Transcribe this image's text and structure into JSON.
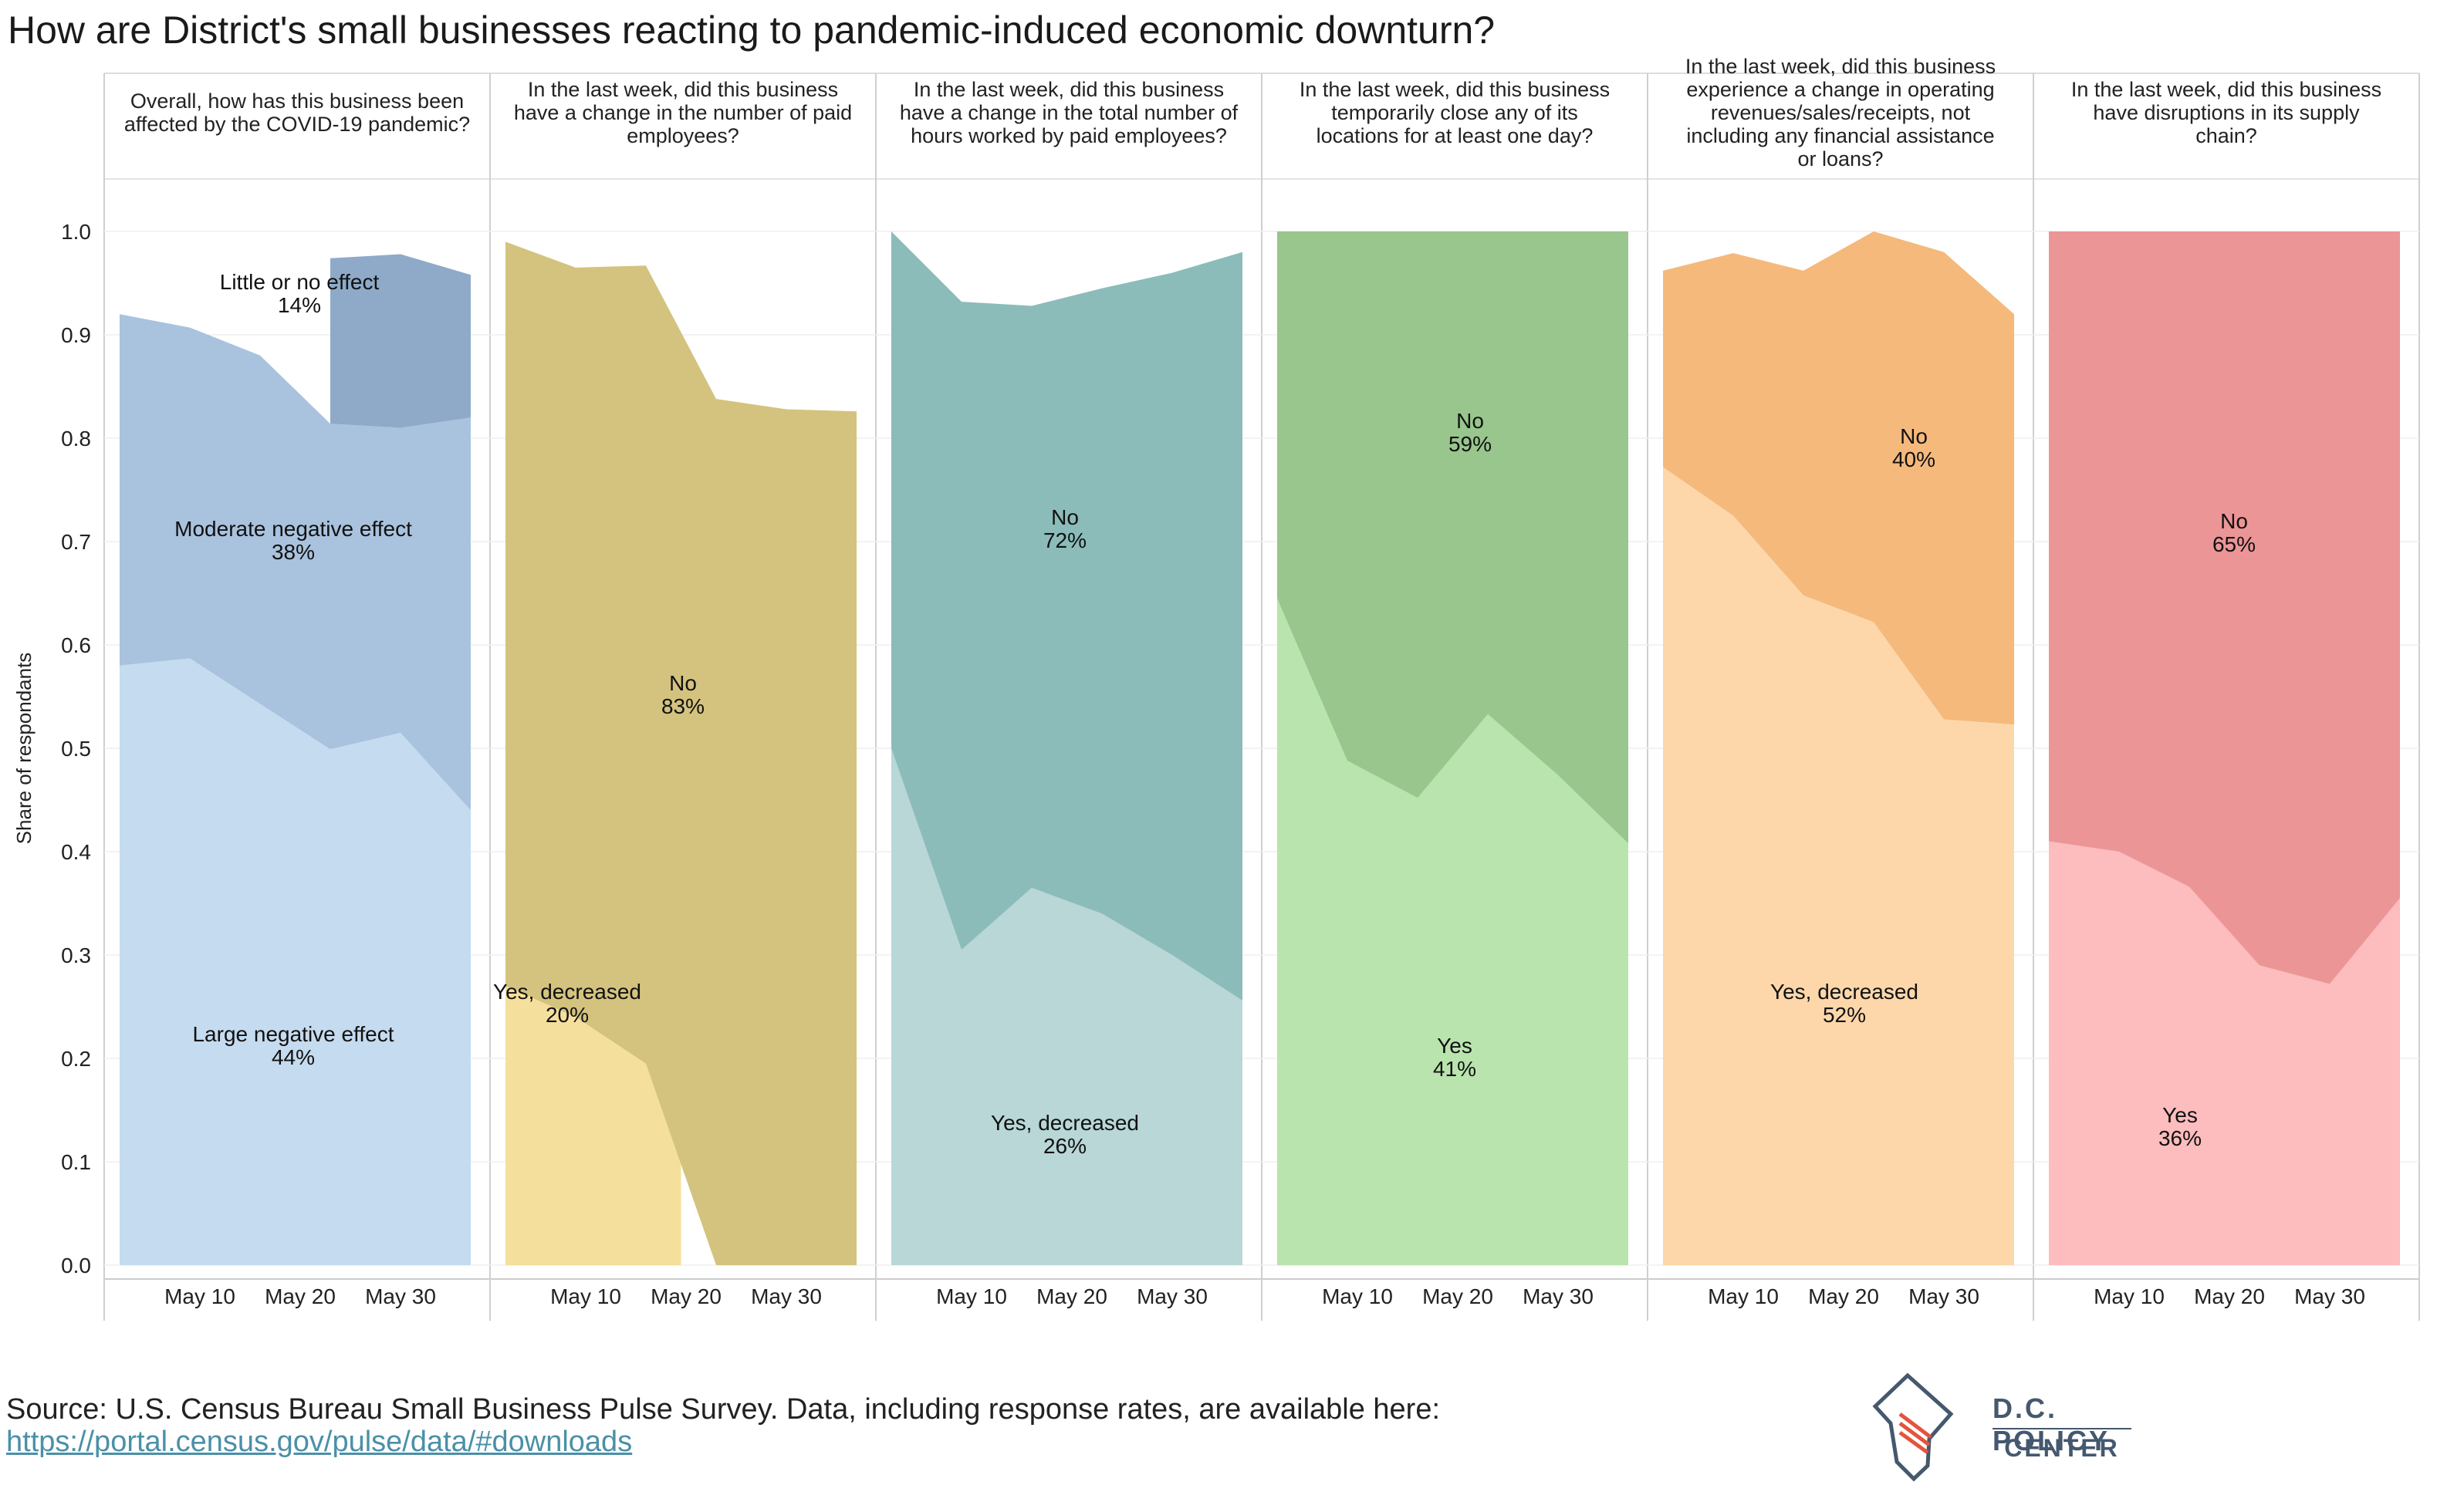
{
  "title": "How are District's small businesses reacting to pandemic-induced economic downturn?",
  "ylabel": "Share of respondants",
  "yticks": [
    "0.0",
    "0.1",
    "0.2",
    "0.3",
    "0.4",
    "0.5",
    "0.6",
    "0.7",
    "0.8",
    "0.9",
    "1.0"
  ],
  "xticks": [
    "May 10",
    "May 20",
    "May 30"
  ],
  "source": {
    "text": "Source: U.S. Census Bureau Small Business Pulse Survey. Data, including response rates, are available here:",
    "link": "https://portal.census.gov/pulse/data/#downloads"
  },
  "logo": {
    "line1": "D.C. POLICY",
    "line2": "CENTER",
    "icon": "dc-map-icon"
  },
  "colors": {
    "panel1": [
      "#c5dbef",
      "#a9c3de",
      "#8eaac8"
    ],
    "panel2": [
      "#f5df9c",
      "#d4c37e"
    ],
    "panel3": [
      "#b8d7d6",
      "#8bbcb9"
    ],
    "panel4": [
      "#b9e4ad",
      "#98c68d"
    ],
    "panel5": [
      "#fdd7aa",
      "#f5b97c"
    ],
    "panel6": [
      "#fdbcbd",
      "#ec9597"
    ]
  },
  "chart_data": [
    {
      "type": "area",
      "title": "Overall, how has this business been affected by the COVID-19 pandemic?",
      "x": [
        "May 3",
        "May 10",
        "May 17",
        "May 24",
        "May 31",
        "Jun 7"
      ],
      "ylim": [
        0,
        1.0
      ],
      "series": [
        {
          "name": "Large negative effect",
          "values": [
            0.58,
            0.587,
            0.543,
            0.499,
            0.515,
            0.44
          ]
        },
        {
          "name": "Moderate negative effect",
          "values": [
            0.34,
            0.32,
            0.337,
            0.315,
            0.295,
            0.38
          ]
        },
        {
          "name": "Little or no effect",
          "values": [
            null,
            null,
            null,
            0.16,
            0.168,
            0.138
          ]
        }
      ],
      "labels": [
        {
          "text": "Little or no effect",
          "value": "14%"
        },
        {
          "text": "Moderate negative effect",
          "value": "38%"
        },
        {
          "text": "Large negative effect",
          "value": "44%"
        }
      ]
    },
    {
      "type": "area",
      "title": "In the last week, did this business have a change in the number of paid employees?",
      "x": [
        "May 3",
        "May 10",
        "May 17",
        "May 24",
        "May 31",
        "Jun 7"
      ],
      "ylim": [
        0,
        1.0
      ],
      "series": [
        {
          "name": "Yes, decreased",
          "values": [
            0.27,
            0.24,
            0.195,
            null,
            null,
            null
          ]
        },
        {
          "name": "No",
          "values": [
            0.72,
            0.725,
            0.772,
            0.838,
            0.828,
            0.826
          ]
        }
      ],
      "labels": [
        {
          "text": "No",
          "value": "83%"
        },
        {
          "text": "Yes, decreased",
          "value": "20%"
        }
      ]
    },
    {
      "type": "area",
      "title": "In the last week, did this business have a change in the total number of hours worked by paid employees?",
      "x": [
        "May 3",
        "May 10",
        "May 17",
        "May 24",
        "May 31",
        "Jun 7"
      ],
      "ylim": [
        0,
        1.0
      ],
      "series": [
        {
          "name": "Yes, decreased",
          "values": [
            0.5,
            0.305,
            0.365,
            0.34,
            0.3,
            0.256
          ]
        },
        {
          "name": "No",
          "values": [
            0.5,
            0.627,
            0.563,
            0.605,
            0.66,
            0.724
          ]
        }
      ],
      "labels": [
        {
          "text": "No",
          "value": "72%"
        },
        {
          "text": "Yes, decreased",
          "value": "26%"
        }
      ]
    },
    {
      "type": "area",
      "title": "In the last week, did this business temporarily close any of its locations for at least one day?",
      "x": [
        "May 3",
        "May 10",
        "May 17",
        "May 24",
        "May 31",
        "Jun 7"
      ],
      "ylim": [
        0,
        1.0
      ],
      "series": [
        {
          "name": "Yes",
          "values": [
            0.645,
            0.488,
            0.452,
            0.533,
            0.474,
            0.408
          ]
        },
        {
          "name": "No",
          "values": [
            0.355,
            0.512,
            0.548,
            0.467,
            0.526,
            0.592
          ]
        }
      ],
      "labels": [
        {
          "text": "No",
          "value": "59%"
        },
        {
          "text": "Yes",
          "value": "41%"
        }
      ]
    },
    {
      "type": "area",
      "title": "In the last week, did this business experience a change in operating revenues/sales/receipts, not including any financial assistance or loans?",
      "x": [
        "May 3",
        "May 10",
        "May 17",
        "May 24",
        "May 31",
        "Jun 7"
      ],
      "ylim": [
        0,
        1.0
      ],
      "series": [
        {
          "name": "Yes, decreased",
          "values": [
            0.772,
            0.725,
            0.648,
            0.622,
            0.528,
            0.523
          ]
        },
        {
          "name": "No",
          "values": [
            0.19,
            0.254,
            0.314,
            0.378,
            0.452,
            0.397
          ]
        }
      ],
      "labels": [
        {
          "text": "No",
          "value": "40%"
        },
        {
          "text": "Yes, decreased",
          "value": "52%"
        }
      ]
    },
    {
      "type": "area",
      "title": "In the last week, did this business have disruptions in its supply chain?",
      "x": [
        "May 3",
        "May 10",
        "May 17",
        "May 24",
        "May 31",
        "Jun 7"
      ],
      "ylim": [
        0,
        1.0
      ],
      "series": [
        {
          "name": "Yes",
          "values": [
            0.41,
            0.4,
            0.366,
            0.29,
            0.272,
            0.355
          ]
        },
        {
          "name": "No",
          "values": [
            0.59,
            0.6,
            0.634,
            0.71,
            0.728,
            0.645
          ]
        }
      ],
      "labels": [
        {
          "text": "No",
          "value": "65%"
        },
        {
          "text": "Yes",
          "value": "36%"
        }
      ]
    }
  ]
}
